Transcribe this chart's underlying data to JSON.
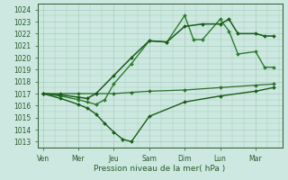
{
  "xlabel": "Pression niveau de la mer( hPa )",
  "ylim": [
    1012.5,
    1024.5
  ],
  "yticks": [
    1013,
    1014,
    1015,
    1016,
    1017,
    1018,
    1019,
    1020,
    1021,
    1022,
    1023,
    1024
  ],
  "day_labels": [
    "Ven",
    "Mer",
    "Jeu",
    "Sam",
    "Dim",
    "Lun",
    "Mar"
  ],
  "day_positions": [
    0,
    2,
    4,
    6,
    8,
    10,
    12
  ],
  "xlim": [
    -0.3,
    13.5
  ],
  "background_color": "#cce8e0",
  "grid_color": "#aaccbb",
  "series": [
    {
      "x": [
        0,
        1,
        2,
        3,
        4,
        5,
        6,
        8,
        10,
        12,
        13
      ],
      "y": [
        1017,
        1017,
        1017,
        1017,
        1017,
        1017.1,
        1017.2,
        1017.3,
        1017.5,
        1017.7,
        1017.8
      ],
      "color": "#2d6e2d",
      "lw": 0.9,
      "marker": "D",
      "ms": 2.0
    },
    {
      "x": [
        0,
        1,
        2,
        2.5,
        3,
        3.5,
        4,
        4.5,
        5,
        6,
        8,
        10,
        12,
        13
      ],
      "y": [
        1017,
        1016.6,
        1016.1,
        1015.8,
        1015.3,
        1014.5,
        1013.8,
        1013.2,
        1013.0,
        1015.1,
        1016.3,
        1016.8,
        1017.2,
        1017.5
      ],
      "color": "#1a5c1a",
      "lw": 1.0,
      "marker": "D",
      "ms": 2.0
    },
    {
      "x": [
        0,
        1,
        2,
        2.5,
        3,
        3.5,
        4,
        5,
        6,
        7,
        8,
        8.5,
        9,
        10,
        10.5,
        11,
        12,
        12.5,
        13
      ],
      "y": [
        1017,
        1016.8,
        1016.5,
        1016.3,
        1016.1,
        1016.5,
        1017.8,
        1019.5,
        1021.4,
        1021.3,
        1023.5,
        1021.5,
        1021.5,
        1023.2,
        1022.2,
        1020.3,
        1020.5,
        1019.2,
        1019.2
      ],
      "color": "#2e7d2e",
      "lw": 1.0,
      "marker": "D",
      "ms": 2.0
    },
    {
      "x": [
        0,
        1,
        2,
        2.5,
        3,
        4,
        5,
        6,
        7,
        8,
        9,
        10,
        10.5,
        11,
        12,
        12.5,
        13
      ],
      "y": [
        1017,
        1016.9,
        1016.7,
        1016.6,
        1017.0,
        1018.5,
        1020.0,
        1021.4,
        1021.3,
        1022.6,
        1022.8,
        1022.8,
        1023.2,
        1022.0,
        1022.0,
        1021.8,
        1021.8
      ],
      "color": "#1a5c1a",
      "lw": 1.1,
      "marker": "D",
      "ms": 2.0
    }
  ]
}
